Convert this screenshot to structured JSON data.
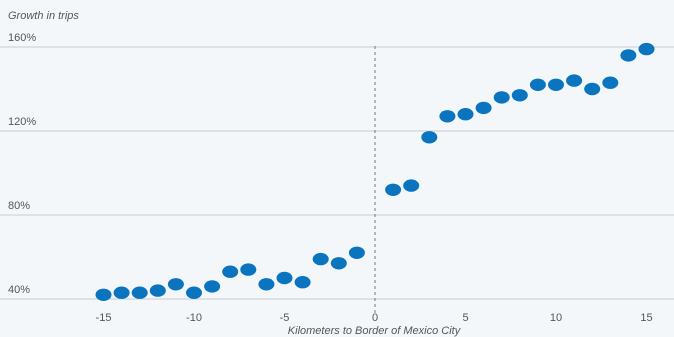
{
  "chart_data": {
    "type": "scatter",
    "title": "",
    "ylabel": "Growth in trips",
    "xlabel": "Kilometers to Border of Mexico City",
    "xlim": [
      -19,
      16
    ],
    "ylim": [
      38,
      164
    ],
    "x_ticks": [
      -15,
      -10,
      -5,
      0,
      5,
      10,
      15
    ],
    "y_ticks": [
      {
        "value": 40,
        "label": "40%"
      },
      {
        "value": 80,
        "label": "80%"
      },
      {
        "value": 120,
        "label": "120%"
      },
      {
        "value": 160,
        "label": "160%"
      }
    ],
    "grid": "horizontal",
    "reference_line_x": 0,
    "color": "#0a74bf",
    "points": [
      {
        "x": -15,
        "y": 42
      },
      {
        "x": -14,
        "y": 43
      },
      {
        "x": -13,
        "y": 43
      },
      {
        "x": -12,
        "y": 44
      },
      {
        "x": -11,
        "y": 47
      },
      {
        "x": -10,
        "y": 43
      },
      {
        "x": -9,
        "y": 46
      },
      {
        "x": -8,
        "y": 53
      },
      {
        "x": -7,
        "y": 54
      },
      {
        "x": -6,
        "y": 47
      },
      {
        "x": -5,
        "y": 50
      },
      {
        "x": -4,
        "y": 48
      },
      {
        "x": -3,
        "y": 59
      },
      {
        "x": -2,
        "y": 57
      },
      {
        "x": -1,
        "y": 62
      },
      {
        "x": 1,
        "y": 92
      },
      {
        "x": 2,
        "y": 94
      },
      {
        "x": 3,
        "y": 117
      },
      {
        "x": 4,
        "y": 127
      },
      {
        "x": 5,
        "y": 128
      },
      {
        "x": 6,
        "y": 131
      },
      {
        "x": 7,
        "y": 136
      },
      {
        "x": 8,
        "y": 137
      },
      {
        "x": 9,
        "y": 142
      },
      {
        "x": 10,
        "y": 142
      },
      {
        "x": 11,
        "y": 144
      },
      {
        "x": 12,
        "y": 140
      },
      {
        "x": 13,
        "y": 143
      },
      {
        "x": 14,
        "y": 156
      },
      {
        "x": 15,
        "y": 159
      }
    ]
  }
}
